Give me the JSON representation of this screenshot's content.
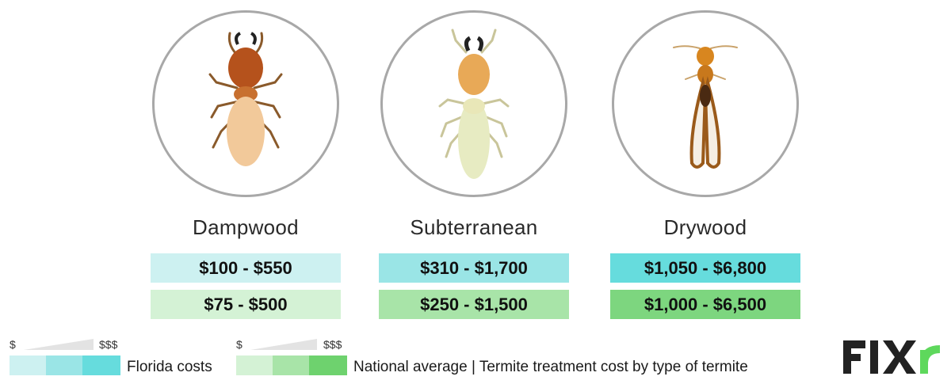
{
  "termites": [
    {
      "name": "Dampwood",
      "florida": "$100 - $550",
      "national": "$75 - $500",
      "florida_color": "#cdf1f1",
      "national_color": "#d4f2d5"
    },
    {
      "name": "Subterranean",
      "florida": "$310 - $1,700",
      "national": "$250 - $1,500",
      "florida_color": "#9ae5e6",
      "national_color": "#a8e4a8"
    },
    {
      "name": "Drywood",
      "florida": "$1,050 - $6,800",
      "national": "$1,000 - $6,500",
      "florida_color": "#66dcdd",
      "national_color": "#7dd67f"
    }
  ],
  "legend": {
    "low": "$",
    "high": "$$$",
    "florida_label": "Florida costs",
    "national_label": "National average",
    "separator": "|",
    "caption": "Termite treatment cost by type of termite"
  },
  "logo": {
    "text": "FIXR",
    "color": "#222222",
    "accent": "#5ed85c"
  },
  "icons": [
    "dampwood-termite-icon",
    "subterranean-termite-icon",
    "drywood-termite-icon"
  ]
}
